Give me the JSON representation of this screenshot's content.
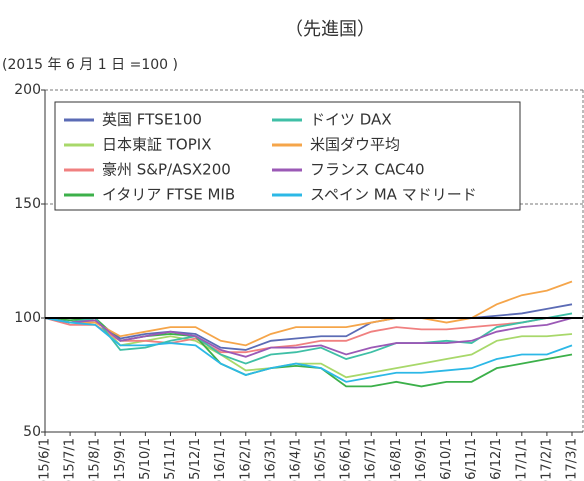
{
  "chart_data": {
    "type": "line",
    "title": "（先進国）",
    "subtitle": "(2015 年 6 月 1 日 =100 )",
    "categories": [
      "2015/6/1",
      "2015/7/1",
      "2015/8/1",
      "2015/9/1",
      "2015/10/1",
      "2015/11/1",
      "2015/12/1",
      "2016/1/1",
      "2016/2/1",
      "2016/3/1",
      "2016/4/1",
      "2016/5/1",
      "2016/6/1",
      "2016/7/1",
      "2016/8/1",
      "2016/9/1",
      "2016/10/1",
      "2016/11/1",
      "2016/12/1",
      "2017/1/1",
      "2017/2/1",
      "2017/3/1"
    ],
    "series": [
      {
        "name": "英国 FTSE100",
        "color": "#5b6bb5",
        "values": [
          100,
          98,
          99,
          91,
          93,
          94,
          93,
          87,
          86,
          90,
          91,
          92,
          92,
          98,
          100,
          100,
          100,
          100,
          101,
          102,
          104,
          106
        ]
      },
      {
        "name": "日本東証 TOPIX",
        "color": "#a8d86a",
        "values": [
          100,
          98,
          100,
          88,
          90,
          92,
          90,
          84,
          77,
          78,
          80,
          80,
          74,
          76,
          78,
          80,
          82,
          84,
          90,
          92,
          92,
          93
        ]
      },
      {
        "name": "豪州 S&P/ASX200",
        "color": "#f08080",
        "values": [
          100,
          97,
          97,
          90,
          90,
          89,
          91,
          85,
          85,
          87,
          88,
          90,
          90,
          94,
          96,
          95,
          95,
          96,
          97,
          98,
          100,
          100
        ]
      },
      {
        "name": "イタリア FTSE MIB",
        "color": "#3cb04a",
        "values": [
          100,
          99,
          100,
          90,
          92,
          93,
          92,
          80,
          75,
          78,
          79,
          78,
          70,
          70,
          72,
          70,
          72,
          72,
          78,
          80,
          82,
          84
        ]
      },
      {
        "name": "ドイツ DAX",
        "color": "#3fbfa6",
        "values": [
          100,
          98,
          100,
          86,
          87,
          90,
          92,
          84,
          80,
          84,
          85,
          87,
          82,
          85,
          89,
          89,
          90,
          89,
          96,
          98,
          100,
          102
        ]
      },
      {
        "name": "米国ダウ平均",
        "color": "#f5a54a",
        "values": [
          100,
          98,
          98,
          92,
          94,
          96,
          96,
          90,
          88,
          93,
          96,
          96,
          96,
          98,
          100,
          100,
          98,
          100,
          106,
          110,
          112,
          116
        ]
      },
      {
        "name": "フランス CAC40",
        "color": "#9b59b6",
        "values": [
          100,
          98,
          99,
          90,
          92,
          94,
          92,
          86,
          83,
          87,
          87,
          88,
          84,
          87,
          89,
          89,
          89,
          90,
          94,
          96,
          97,
          100
        ]
      },
      {
        "name": "スペイン MA マドリード",
        "color": "#2cb8e6",
        "values": [
          100,
          98,
          97,
          88,
          88,
          89,
          88,
          80,
          75,
          78,
          80,
          78,
          72,
          74,
          76,
          76,
          77,
          78,
          82,
          84,
          84,
          88
        ]
      }
    ],
    "ylim": [
      50,
      200
    ],
    "yticks": [
      50,
      100,
      150,
      200
    ],
    "grid": true,
    "reference_line": 100
  }
}
